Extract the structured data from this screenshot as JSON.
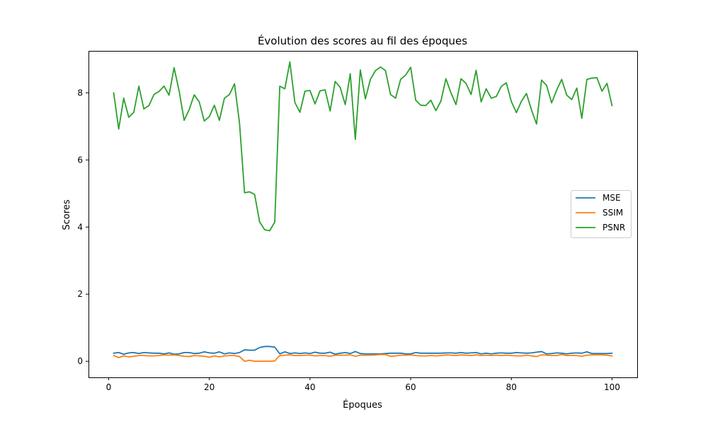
{
  "chart_data": {
    "type": "line",
    "title": "Évolution des scores au fil des époques",
    "xlabel": "Époques",
    "ylabel": "Scores",
    "xlim": [
      -4,
      105
    ],
    "ylim": [
      -0.48,
      9.25
    ],
    "xticks": [
      0,
      20,
      40,
      60,
      80,
      100
    ],
    "yticks": [
      0,
      2,
      4,
      6,
      8
    ],
    "grid": false,
    "legend_position": "center-right",
    "x": [
      1,
      2,
      3,
      4,
      5,
      6,
      7,
      8,
      9,
      10,
      11,
      12,
      13,
      14,
      15,
      16,
      17,
      18,
      19,
      20,
      21,
      22,
      23,
      24,
      25,
      26,
      27,
      28,
      29,
      30,
      31,
      32,
      33,
      34,
      35,
      36,
      37,
      38,
      39,
      40,
      41,
      42,
      43,
      44,
      45,
      46,
      47,
      48,
      49,
      50,
      51,
      52,
      53,
      54,
      55,
      56,
      57,
      58,
      59,
      60,
      61,
      62,
      63,
      64,
      65,
      66,
      67,
      68,
      69,
      70,
      71,
      72,
      73,
      74,
      75,
      76,
      77,
      78,
      79,
      80,
      81,
      82,
      83,
      84,
      85,
      86,
      87,
      88,
      89,
      90,
      91,
      92,
      93,
      94,
      95,
      96,
      97,
      98,
      99,
      100
    ],
    "series": [
      {
        "name": "MSE",
        "color": "#1f77b4",
        "values": [
          0.24,
          0.26,
          0.21,
          0.25,
          0.26,
          0.23,
          0.26,
          0.25,
          0.24,
          0.24,
          0.22,
          0.25,
          0.21,
          0.22,
          0.26,
          0.26,
          0.23,
          0.24,
          0.28,
          0.25,
          0.24,
          0.28,
          0.22,
          0.25,
          0.23,
          0.26,
          0.34,
          0.33,
          0.33,
          0.41,
          0.44,
          0.44,
          0.42,
          0.22,
          0.28,
          0.23,
          0.25,
          0.23,
          0.25,
          0.23,
          0.27,
          0.24,
          0.24,
          0.27,
          0.21,
          0.24,
          0.26,
          0.23,
          0.29,
          0.23,
          0.22,
          0.22,
          0.22,
          0.22,
          0.23,
          0.24,
          0.24,
          0.24,
          0.22,
          0.22,
          0.26,
          0.24,
          0.24,
          0.24,
          0.24,
          0.24,
          0.25,
          0.25,
          0.24,
          0.26,
          0.24,
          0.25,
          0.26,
          0.22,
          0.24,
          0.22,
          0.24,
          0.25,
          0.24,
          0.24,
          0.26,
          0.25,
          0.24,
          0.25,
          0.27,
          0.29,
          0.22,
          0.23,
          0.25,
          0.24,
          0.22,
          0.24,
          0.25,
          0.24,
          0.28,
          0.23,
          0.23,
          0.23,
          0.23,
          0.24
        ]
      },
      {
        "name": "SSIM",
        "color": "#ff7f0e",
        "values": [
          0.17,
          0.11,
          0.16,
          0.13,
          0.15,
          0.17,
          0.17,
          0.16,
          0.16,
          0.17,
          0.19,
          0.18,
          0.19,
          0.17,
          0.15,
          0.14,
          0.17,
          0.16,
          0.15,
          0.12,
          0.16,
          0.13,
          0.16,
          0.17,
          0.17,
          0.14,
          0.0,
          0.03,
          0.0,
          0.0,
          0.0,
          0.0,
          0.01,
          0.17,
          0.18,
          0.19,
          0.17,
          0.17,
          0.18,
          0.18,
          0.16,
          0.17,
          0.17,
          0.15,
          0.18,
          0.18,
          0.18,
          0.19,
          0.15,
          0.18,
          0.18,
          0.18,
          0.19,
          0.2,
          0.2,
          0.15,
          0.16,
          0.18,
          0.18,
          0.19,
          0.17,
          0.16,
          0.16,
          0.17,
          0.16,
          0.17,
          0.19,
          0.18,
          0.17,
          0.19,
          0.18,
          0.17,
          0.19,
          0.17,
          0.18,
          0.17,
          0.18,
          0.17,
          0.18,
          0.17,
          0.16,
          0.16,
          0.18,
          0.16,
          0.14,
          0.19,
          0.18,
          0.17,
          0.17,
          0.2,
          0.17,
          0.17,
          0.17,
          0.15,
          0.18,
          0.19,
          0.19,
          0.19,
          0.18,
          0.16
        ]
      },
      {
        "name": "PSNR",
        "color": "#2ca02c",
        "values": [
          8.0,
          6.92,
          7.84,
          7.27,
          7.42,
          8.2,
          7.52,
          7.62,
          7.95,
          8.04,
          8.2,
          7.93,
          8.75,
          8.06,
          7.18,
          7.5,
          7.94,
          7.73,
          7.16,
          7.29,
          7.63,
          7.18,
          7.84,
          7.95,
          8.27,
          7.1,
          5.02,
          5.05,
          4.97,
          4.15,
          3.92,
          3.89,
          4.15,
          8.2,
          8.12,
          8.92,
          7.71,
          7.42,
          8.05,
          8.07,
          7.67,
          8.06,
          8.09,
          7.46,
          8.34,
          8.16,
          7.65,
          8.57,
          6.61,
          8.68,
          7.82,
          8.4,
          8.66,
          8.77,
          8.66,
          7.95,
          7.84,
          8.4,
          8.53,
          8.76,
          7.78,
          7.63,
          7.62,
          7.78,
          7.47,
          7.75,
          8.42,
          8.0,
          7.65,
          8.42,
          8.28,
          7.95,
          8.67,
          7.73,
          8.12,
          7.84,
          7.89,
          8.19,
          8.3,
          7.74,
          7.41,
          7.75,
          7.98,
          7.49,
          7.07,
          8.38,
          8.22,
          7.7,
          8.08,
          8.4,
          7.93,
          7.8,
          8.14,
          7.24,
          8.4,
          8.44,
          8.45,
          8.05,
          8.28,
          7.62
        ]
      }
    ]
  }
}
